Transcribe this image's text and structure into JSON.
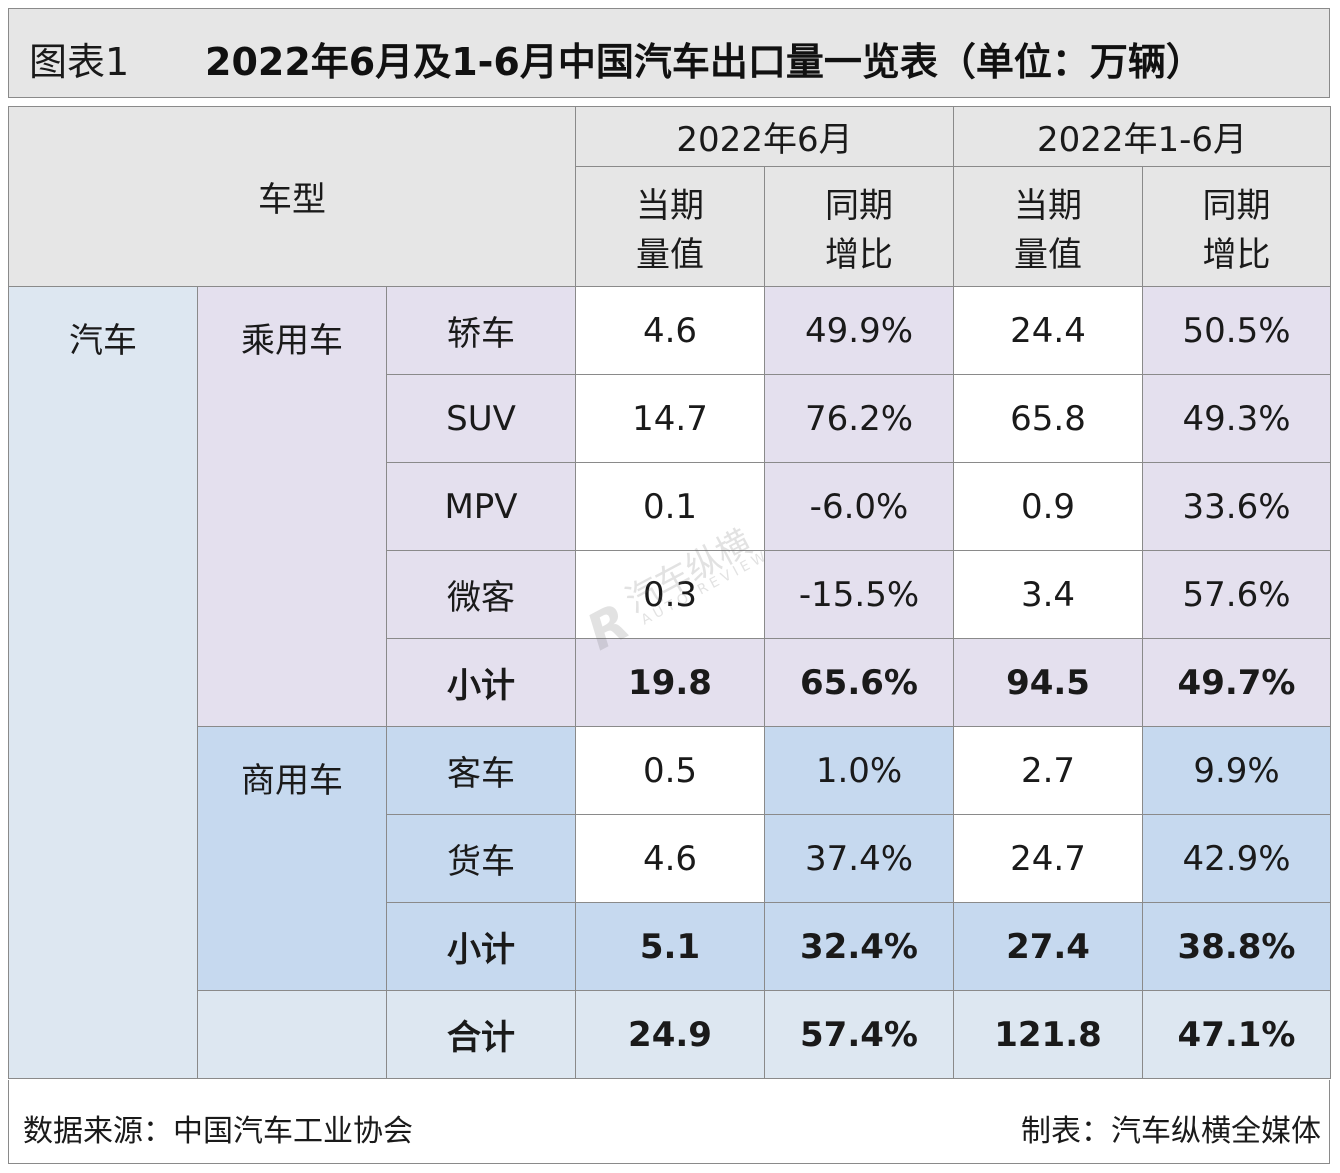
{
  "title": {
    "label": "图表1",
    "text": "2022年6月及1-6月中国汽车出口量一览表（单位：万辆）"
  },
  "header": {
    "vehicle_type": "车型",
    "period1": "2022年6月",
    "period2": "2022年1-6月",
    "value_col": [
      "当期",
      "量值"
    ],
    "growth_col": [
      "同期",
      "增比"
    ]
  },
  "groups": {
    "auto": "汽车",
    "passenger": "乘用车",
    "commercial": "商用车"
  },
  "rows": {
    "sedan": {
      "label": "轿车",
      "jun_value": "4.6",
      "jun_growth": "49.9%",
      "h1_value": "24.4",
      "h1_growth": "50.5%"
    },
    "suv": {
      "label": "SUV",
      "jun_value": "14.7",
      "jun_growth": "76.2%",
      "h1_value": "65.8",
      "h1_growth": "49.3%"
    },
    "mpv": {
      "label": "MPV",
      "jun_value": "0.1",
      "jun_growth": "-6.0%",
      "h1_value": "0.9",
      "h1_growth": "33.6%"
    },
    "minibus": {
      "label": "微客",
      "jun_value": "0.3",
      "jun_growth": "-15.5%",
      "h1_value": "3.4",
      "h1_growth": "57.6%"
    },
    "p_sub": {
      "label": "小计",
      "jun_value": "19.8",
      "jun_growth": "65.6%",
      "h1_value": "94.5",
      "h1_growth": "49.7%"
    },
    "bus": {
      "label": "客车",
      "jun_value": "0.5",
      "jun_growth": "1.0%",
      "h1_value": "2.7",
      "h1_growth": "9.9%"
    },
    "truck": {
      "label": "货车",
      "jun_value": "4.6",
      "jun_growth": "37.4%",
      "h1_value": "24.7",
      "h1_growth": "42.9%"
    },
    "c_sub": {
      "label": "小计",
      "jun_value": "5.1",
      "jun_growth": "32.4%",
      "h1_value": "27.4",
      "h1_growth": "38.8%"
    },
    "total": {
      "label": "合计",
      "jun_value": "24.9",
      "jun_growth": "57.4%",
      "h1_value": "121.8",
      "h1_growth": "47.1%"
    }
  },
  "footer": {
    "source": "数据来源：中国汽车工业协会",
    "maker": "制表：汽车纵横全媒体"
  },
  "watermark": {
    "logo": "R",
    "cn": "汽车纵横",
    "en": "AUTO REVIEW"
  }
}
